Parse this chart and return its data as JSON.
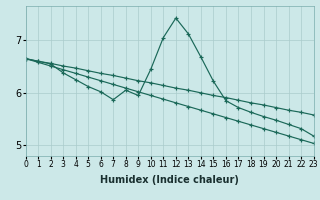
{
  "xlabel": "Humidex (Indice chaleur)",
  "xlim": [
    0,
    23
  ],
  "ylim": [
    4.8,
    7.65
  ],
  "bg_color": "#cce8e8",
  "grid_color": "#aacccc",
  "line_color": "#1a6858",
  "xticks": [
    0,
    1,
    2,
    3,
    4,
    5,
    6,
    7,
    8,
    9,
    10,
    11,
    12,
    13,
    14,
    15,
    16,
    17,
    18,
    19,
    20,
    21,
    22,
    23
  ],
  "yticks": [
    5,
    6,
    7
  ],
  "line1_x": [
    0,
    1,
    2,
    3,
    4,
    5,
    6,
    7,
    8,
    9,
    10,
    11,
    12,
    13,
    14,
    15,
    16,
    17,
    18,
    19,
    20,
    21,
    22,
    23
  ],
  "line1_y": [
    6.65,
    6.6,
    6.55,
    6.38,
    6.25,
    6.12,
    6.02,
    5.87,
    6.05,
    5.95,
    6.45,
    7.05,
    7.42,
    7.12,
    6.68,
    6.22,
    5.85,
    5.72,
    5.63,
    5.55,
    5.48,
    5.4,
    5.32,
    5.18
  ],
  "line2_x": [
    0,
    1,
    2,
    3,
    4,
    5,
    6,
    7,
    8,
    9,
    10,
    11,
    12,
    13,
    14,
    15,
    16,
    17,
    18,
    19,
    20,
    21,
    22,
    23
  ],
  "line2_y": [
    6.65,
    6.6,
    6.56,
    6.51,
    6.47,
    6.42,
    6.37,
    6.33,
    6.28,
    6.23,
    6.19,
    6.14,
    6.09,
    6.05,
    6.0,
    5.95,
    5.91,
    5.86,
    5.81,
    5.77,
    5.72,
    5.67,
    5.63,
    5.58
  ],
  "line3_x": [
    0,
    1,
    2,
    3,
    4,
    5,
    6,
    7,
    8,
    9,
    10,
    11,
    12,
    13,
    14,
    15,
    16,
    17,
    18,
    19,
    20,
    21,
    22,
    23
  ],
  "line3_y": [
    6.65,
    6.58,
    6.51,
    6.44,
    6.37,
    6.3,
    6.23,
    6.16,
    6.09,
    6.02,
    5.95,
    5.88,
    5.81,
    5.74,
    5.67,
    5.6,
    5.53,
    5.46,
    5.39,
    5.32,
    5.25,
    5.18,
    5.11,
    5.04
  ],
  "xtick_fontsize": 5.5,
  "ytick_fontsize": 7,
  "xlabel_fontsize": 7
}
